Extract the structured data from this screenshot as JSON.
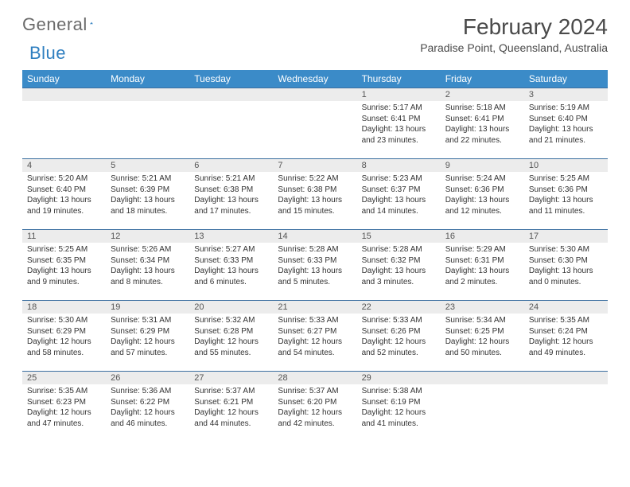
{
  "brand": {
    "part1": "General",
    "part2": "Blue"
  },
  "title": "February 2024",
  "location": "Paradise Point, Queensland, Australia",
  "colors": {
    "header_bg": "#3b8bc8",
    "header_text": "#ffffff",
    "row_border": "#3b6fa0",
    "daynum_bg": "#ececec",
    "text": "#333333",
    "brand_gray": "#6a6a6a",
    "brand_blue": "#2f7fc0"
  },
  "weekdays": [
    "Sunday",
    "Monday",
    "Tuesday",
    "Wednesday",
    "Thursday",
    "Friday",
    "Saturday"
  ],
  "weeks": [
    [
      null,
      null,
      null,
      null,
      {
        "n": "1",
        "sr": "5:17 AM",
        "ss": "6:41 PM",
        "dl": "13 hours and 23 minutes."
      },
      {
        "n": "2",
        "sr": "5:18 AM",
        "ss": "6:41 PM",
        "dl": "13 hours and 22 minutes."
      },
      {
        "n": "3",
        "sr": "5:19 AM",
        "ss": "6:40 PM",
        "dl": "13 hours and 21 minutes."
      }
    ],
    [
      {
        "n": "4",
        "sr": "5:20 AM",
        "ss": "6:40 PM",
        "dl": "13 hours and 19 minutes."
      },
      {
        "n": "5",
        "sr": "5:21 AM",
        "ss": "6:39 PM",
        "dl": "13 hours and 18 minutes."
      },
      {
        "n": "6",
        "sr": "5:21 AM",
        "ss": "6:38 PM",
        "dl": "13 hours and 17 minutes."
      },
      {
        "n": "7",
        "sr": "5:22 AM",
        "ss": "6:38 PM",
        "dl": "13 hours and 15 minutes."
      },
      {
        "n": "8",
        "sr": "5:23 AM",
        "ss": "6:37 PM",
        "dl": "13 hours and 14 minutes."
      },
      {
        "n": "9",
        "sr": "5:24 AM",
        "ss": "6:36 PM",
        "dl": "13 hours and 12 minutes."
      },
      {
        "n": "10",
        "sr": "5:25 AM",
        "ss": "6:36 PM",
        "dl": "13 hours and 11 minutes."
      }
    ],
    [
      {
        "n": "11",
        "sr": "5:25 AM",
        "ss": "6:35 PM",
        "dl": "13 hours and 9 minutes."
      },
      {
        "n": "12",
        "sr": "5:26 AM",
        "ss": "6:34 PM",
        "dl": "13 hours and 8 minutes."
      },
      {
        "n": "13",
        "sr": "5:27 AM",
        "ss": "6:33 PM",
        "dl": "13 hours and 6 minutes."
      },
      {
        "n": "14",
        "sr": "5:28 AM",
        "ss": "6:33 PM",
        "dl": "13 hours and 5 minutes."
      },
      {
        "n": "15",
        "sr": "5:28 AM",
        "ss": "6:32 PM",
        "dl": "13 hours and 3 minutes."
      },
      {
        "n": "16",
        "sr": "5:29 AM",
        "ss": "6:31 PM",
        "dl": "13 hours and 2 minutes."
      },
      {
        "n": "17",
        "sr": "5:30 AM",
        "ss": "6:30 PM",
        "dl": "13 hours and 0 minutes."
      }
    ],
    [
      {
        "n": "18",
        "sr": "5:30 AM",
        "ss": "6:29 PM",
        "dl": "12 hours and 58 minutes."
      },
      {
        "n": "19",
        "sr": "5:31 AM",
        "ss": "6:29 PM",
        "dl": "12 hours and 57 minutes."
      },
      {
        "n": "20",
        "sr": "5:32 AM",
        "ss": "6:28 PM",
        "dl": "12 hours and 55 minutes."
      },
      {
        "n": "21",
        "sr": "5:33 AM",
        "ss": "6:27 PM",
        "dl": "12 hours and 54 minutes."
      },
      {
        "n": "22",
        "sr": "5:33 AM",
        "ss": "6:26 PM",
        "dl": "12 hours and 52 minutes."
      },
      {
        "n": "23",
        "sr": "5:34 AM",
        "ss": "6:25 PM",
        "dl": "12 hours and 50 minutes."
      },
      {
        "n": "24",
        "sr": "5:35 AM",
        "ss": "6:24 PM",
        "dl": "12 hours and 49 minutes."
      }
    ],
    [
      {
        "n": "25",
        "sr": "5:35 AM",
        "ss": "6:23 PM",
        "dl": "12 hours and 47 minutes."
      },
      {
        "n": "26",
        "sr": "5:36 AM",
        "ss": "6:22 PM",
        "dl": "12 hours and 46 minutes."
      },
      {
        "n": "27",
        "sr": "5:37 AM",
        "ss": "6:21 PM",
        "dl": "12 hours and 44 minutes."
      },
      {
        "n": "28",
        "sr": "5:37 AM",
        "ss": "6:20 PM",
        "dl": "12 hours and 42 minutes."
      },
      {
        "n": "29",
        "sr": "5:38 AM",
        "ss": "6:19 PM",
        "dl": "12 hours and 41 minutes."
      },
      null,
      null
    ]
  ],
  "labels": {
    "sunrise": "Sunrise:",
    "sunset": "Sunset:",
    "daylight": "Daylight:"
  }
}
